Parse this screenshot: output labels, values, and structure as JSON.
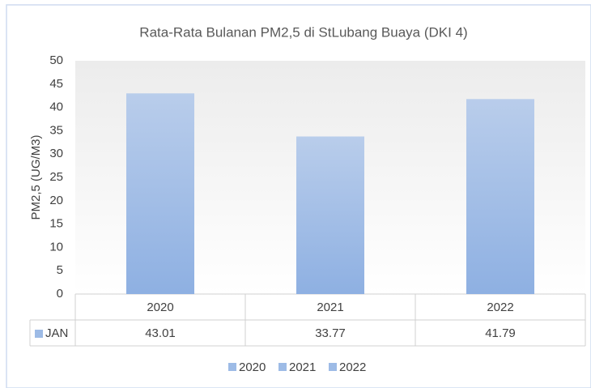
{
  "chart_data": {
    "type": "bar",
    "title": "Rata-Rata Bulanan PM2,5 di StLubang Buaya (DKI 4)",
    "y_label": "PM2,5 (UG/M3)",
    "categories": [
      "2020",
      "2021",
      "2022"
    ],
    "series": [
      {
        "name": "JAN",
        "color": "#9dbbe6",
        "values": [
          43.01,
          33.77,
          41.79
        ]
      }
    ],
    "ylim": [
      0,
      50
    ],
    "yticks": [
      0,
      5,
      10,
      15,
      20,
      25,
      30,
      35,
      40,
      45,
      50
    ],
    "grid": false,
    "legend": "bottom"
  }
}
